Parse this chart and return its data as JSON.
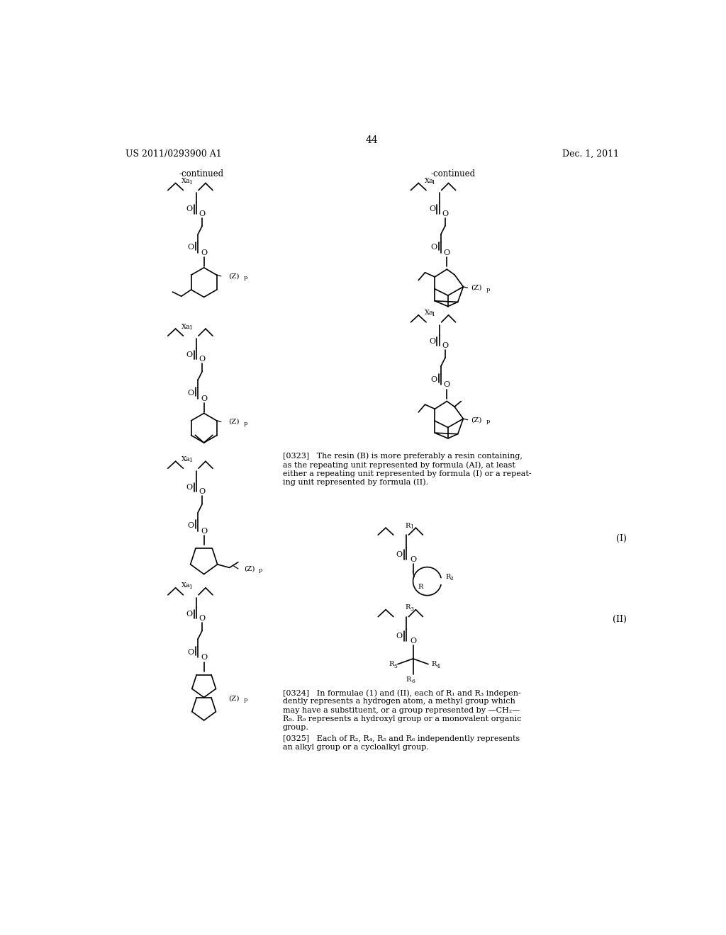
{
  "page_number": "44",
  "header_left": "US 2011/0293900 A1",
  "header_right": "Dec. 1, 2011",
  "continued_left": "-continued",
  "continued_right": "-continued",
  "formula_label_I": "(I)",
  "formula_label_II": "(II)",
  "bg_color": "#ffffff",
  "text_color": "#000000",
  "font_size_header": 9,
  "font_size_body": 8.5,
  "font_size_page": 10,
  "para_0323_lines": [
    "[0323]   The resin (B) is more preferably a resin containing,",
    "as the repeating unit represented by formula (AI), at least",
    "either a repeating unit represented by formula (I) or a repeat-",
    "ing unit represented by formula (II)."
  ],
  "para_0324_lines": [
    "[0324]   In formulae (1) and (II), each of R₁ and R₃ indepen-",
    "dently represents a hydrogen atom, a methyl group which",
    "may have a substituent, or a group represented by —CH₂—",
    "R₉. R₉ represents a hydroxyl group or a monovalent organic",
    "group."
  ],
  "para_0325_lines": [
    "[0325]   Each of R₂, R₄, R₅ and R₆ independently represents",
    "an alkyl group or a cycloalkyl group."
  ]
}
